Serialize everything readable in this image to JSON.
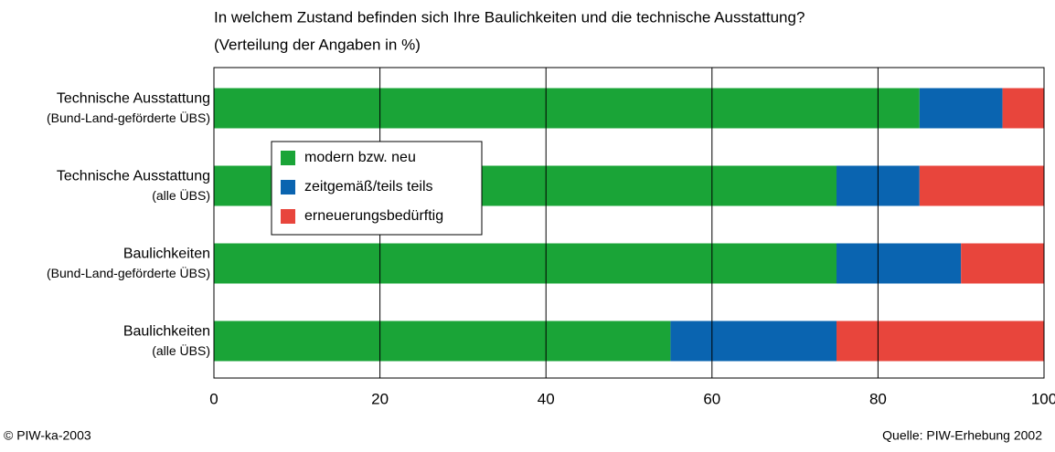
{
  "chart_data": {
    "type": "stacked-bar-horizontal",
    "title": "In welchem Zustand befinden sich Ihre Baulichkeiten und die technische Ausstattung?",
    "subtitle": "(Verteilung der Angaben in %)",
    "categories": [
      [
        "Technische Ausstattung",
        "(Bund-Land-geförderte ÜBS)"
      ],
      [
        "Technische Ausstattung",
        "(alle ÜBS)"
      ],
      [
        "Baulichkeiten",
        "(Bund-Land-geförderte ÜBS)"
      ],
      [
        "Baulichkeiten",
        "(alle ÜBS)"
      ]
    ],
    "series": [
      {
        "name": "modern bzw. neu",
        "color": "#1aa437",
        "values": [
          85,
          75,
          75,
          55
        ]
      },
      {
        "name": "zeitgemäß/teils teils",
        "color": "#0a64b0",
        "values": [
          10,
          10,
          15,
          20
        ]
      },
      {
        "name": "erneuerungsbedürftig",
        "color": "#e8453c",
        "values": [
          5,
          15,
          10,
          25
        ]
      }
    ],
    "xlim": [
      0,
      100
    ],
    "xticks": [
      0,
      20,
      40,
      60,
      80,
      100
    ],
    "grid": true,
    "copyright": "© PIW-ka-2003",
    "source": "Quelle: PIW-Erhebung 2002"
  }
}
